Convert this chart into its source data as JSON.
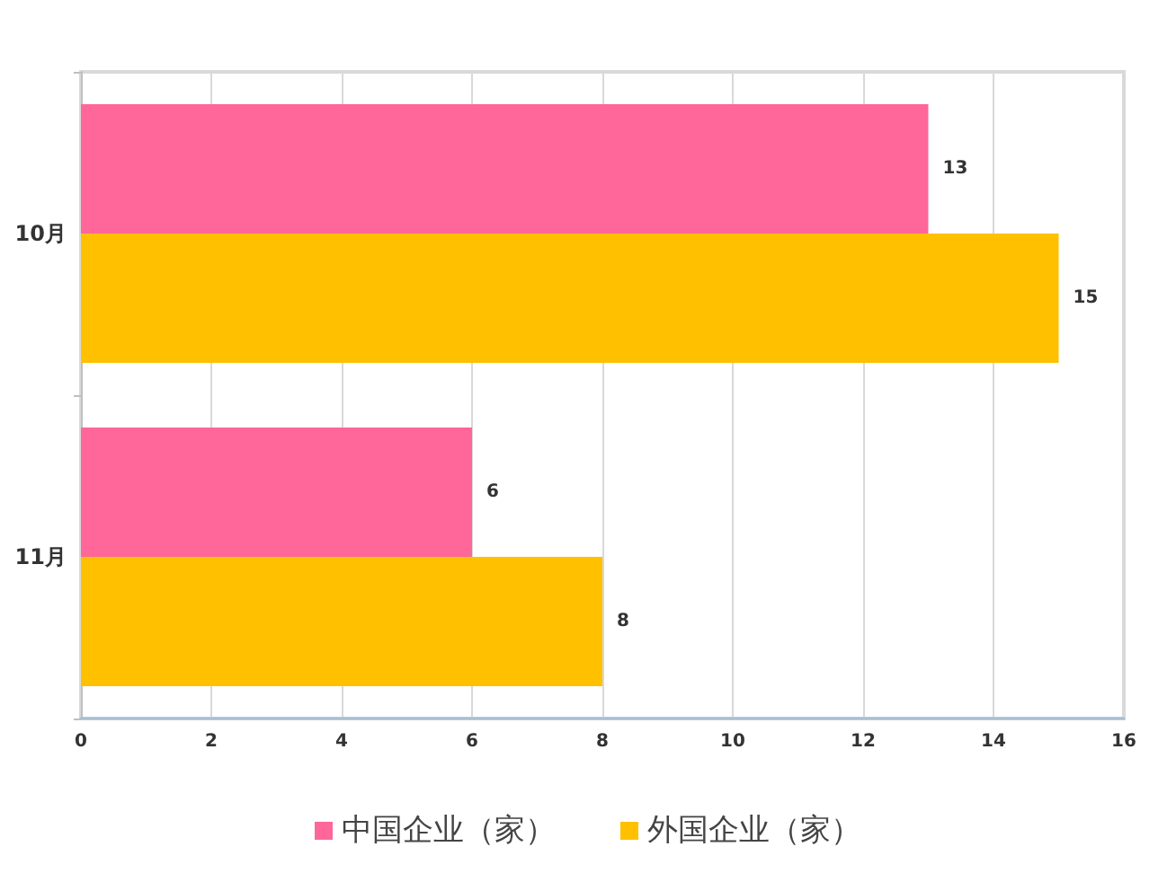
{
  "chart_data": {
    "type": "bar",
    "orientation": "horizontal",
    "categories": [
      "10月",
      "11月"
    ],
    "series": [
      {
        "name": "中国企业（家）",
        "color": "#ff6699",
        "values": [
          13,
          6
        ]
      },
      {
        "name": "外国企业（家）",
        "color": "#ffc000",
        "values": [
          15,
          8
        ]
      }
    ],
    "xlim": [
      0,
      16
    ],
    "xticks": [
      0,
      2,
      4,
      6,
      8,
      10,
      12,
      14,
      16
    ],
    "grid": "x",
    "legend": "bottom",
    "data_labels": true
  }
}
